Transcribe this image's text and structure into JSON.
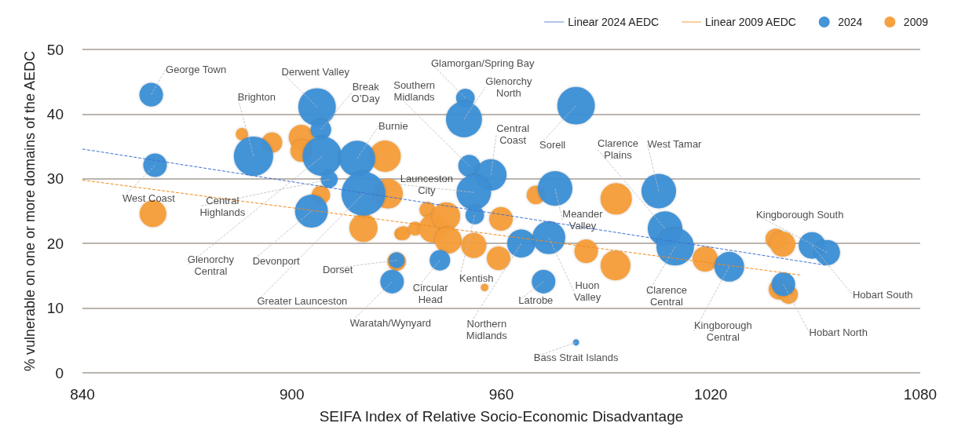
{
  "chart_data": {
    "type": "bubble",
    "xlabel": "SEIFA Index of Relative Socio-Economic Disadvantage",
    "ylabel": "% vulnerable on one or more domains of the AEDC",
    "xlim": [
      840,
      1080
    ],
    "xticks": [
      840,
      900,
      960,
      1020,
      1080
    ],
    "ylim": [
      0,
      50
    ],
    "yticks": [
      0,
      10,
      20,
      30,
      40,
      50
    ],
    "grid": "y",
    "legend": "top right",
    "series": [
      {
        "name": "Linear 2024 AEDC",
        "type": "line",
        "color": "#3f6fcf",
        "x": [
          840,
          1053.4
        ],
        "values": [
          34.6,
          16.6
        ],
        "line_style": "dashed",
        "marker": "none"
      },
      {
        "name": "Linear 2009 AEDC",
        "type": "line",
        "color": "#f08a1c",
        "x": [
          840,
          1046.1
        ],
        "values": [
          29.8,
          15.1
        ],
        "line_style": "dashed",
        "marker": "none"
      },
      {
        "name": "2024",
        "color": "#3d8fd6",
        "x": [
          859.7,
          860.8,
          889.0,
          907.2,
          908.3,
          908.7,
          918.7,
          910.7,
          920.5,
          905.6,
          930.0,
          928.7,
          949.7,
          949.3,
          950.8,
          957.0,
          952.1,
          952.4,
          942.4,
          965.7,
          972.1,
          973.6,
          975.4,
          981.4,
          981.4,
          1005.1,
          1006.9,
          1009.8,
          1025.3,
          1040.8,
          1049.0,
          1053.4
        ],
        "values": [
          43.0,
          32.1,
          33.5,
          41.1,
          37.6,
          33.5,
          33.1,
          29.9,
          27.7,
          25.0,
          17.4,
          14.1,
          42.5,
          39.2,
          32.0,
          30.6,
          27.9,
          24.4,
          17.4,
          20.0,
          14.1,
          20.9,
          28.5,
          41.3,
          4.7,
          28.1,
          22.3,
          19.5,
          16.4,
          13.7,
          19.7,
          18.6
        ],
        "sizes": [
          0.29,
          0.29,
          0.8,
          0.73,
          0.22,
          0.8,
          0.67,
          0.15,
          1,
          0.56,
          0.13,
          0.29,
          0.18,
          0.67,
          0.25,
          0.51,
          0.62,
          0.18,
          0.22,
          0.41,
          0.29,
          0.56,
          0.62,
          0.73,
          0.02,
          0.62,
          0.62,
          0.73,
          0.46,
          0.29,
          0.37,
          0.33
        ]
      },
      {
        "name": "2009",
        "color": "#f59d38",
        "x": [
          860.2,
          885.7,
          894.3,
          902.7,
          902.7,
          908.3,
          926.7,
          927.5,
          920.5,
          931.1,
          930.0,
          932.0,
          935.3,
          938.8,
          940.4,
          944.2,
          944.8,
          952.1,
          959.9,
          959.2,
          955.2,
          969.9,
          984.3,
          992.9,
          992.7,
          1018.4,
          1038.6,
          1040.6,
          1039.5,
          1042.3
        ],
        "values": [
          24.6,
          36.9,
          35.6,
          36.4,
          34.3,
          27.5,
          33.5,
          27.7,
          22.4,
          21.5,
          17.2,
          21.6,
          22.3,
          25.2,
          22.3,
          24.2,
          20.5,
          19.7,
          23.8,
          17.7,
          13.2,
          27.5,
          18.8,
          26.9,
          16.6,
          17.6,
          20.7,
          19.9,
          12.9,
          12.1
        ],
        "sizes": [
          0.37,
          0.08,
          0.22,
          0.33,
          0.25,
          0.18,
          0.51,
          0.46,
          0.41,
          0.08,
          0.18,
          0.1,
          0.1,
          0.13,
          0.41,
          0.41,
          0.37,
          0.33,
          0.29,
          0.29,
          0.03,
          0.18,
          0.29,
          0.51,
          0.46,
          0.33,
          0.22,
          0.33,
          0.22,
          0.18
        ]
      }
    ],
    "annotations": [
      {
        "text": "George Town",
        "x": 859.7,
        "y": 43.0
      },
      {
        "text": "West Coast",
        "x": 860.8,
        "y": 32.1
      },
      {
        "text": "Brighton",
        "x": 889.0,
        "y": 33.5
      },
      {
        "text": "Derwent Valley",
        "x": 907.2,
        "y": 41.1
      },
      {
        "text": "Break O’Day",
        "x": 908.3,
        "y": 37.6
      },
      {
        "text": "Central Highlands",
        "x": 910.7,
        "y": 29.9
      },
      {
        "text": "Glenorchy Central",
        "x": 908.7,
        "y": 33.5
      },
      {
        "text": "Devonport",
        "x": 905.6,
        "y": 25.0
      },
      {
        "text": "Burnie",
        "x": 918.7,
        "y": 33.1
      },
      {
        "text": "Greater Launceston",
        "x": 920.5,
        "y": 27.7
      },
      {
        "text": "Dorset",
        "x": 930.0,
        "y": 17.4
      },
      {
        "text": "Waratah/Wynyard",
        "x": 928.7,
        "y": 14.1
      },
      {
        "text": "Southern Midlands",
        "x": 950.8,
        "y": 32.0
      },
      {
        "text": "Glamorgan/Spring Bay",
        "x": 949.7,
        "y": 42.5
      },
      {
        "text": "Glenorchy North",
        "x": 949.3,
        "y": 39.2
      },
      {
        "text": "Launceston City",
        "x": 952.1,
        "y": 27.9
      },
      {
        "text": "Central Coast",
        "x": 957.0,
        "y": 30.6
      },
      {
        "text": "Circular Head",
        "x": 942.4,
        "y": 17.4
      },
      {
        "text": "Kentish",
        "x": 952.4,
        "y": 24.4
      },
      {
        "text": "Northern Midlands",
        "x": 965.7,
        "y": 20.0
      },
      {
        "text": "Latrobe",
        "x": 972.1,
        "y": 14.1
      },
      {
        "text": "Sorell",
        "x": 981.4,
        "y": 41.3
      },
      {
        "text": "Huon Valley",
        "x": 973.6,
        "y": 20.9
      },
      {
        "text": "Meander Valley",
        "x": 975.4,
        "y": 28.5
      },
      {
        "text": "Bass Strait Islands",
        "x": 981.4,
        "y": 4.7
      },
      {
        "text": "Clarence Plains",
        "x": 1006.9,
        "y": 22.3
      },
      {
        "text": "West Tamar",
        "x": 1005.1,
        "y": 28.1
      },
      {
        "text": "Clarence Central",
        "x": 1009.8,
        "y": 19.5
      },
      {
        "text": "Kingborough Central",
        "x": 1025.3,
        "y": 16.4
      },
      {
        "text": "Kingborough South",
        "x": 1053.4,
        "y": 18.6
      },
      {
        "text": "Hobart South",
        "x": 1049.0,
        "y": 19.7
      },
      {
        "text": "Hobart North",
        "x": 1040.8,
        "y": 13.7
      }
    ]
  }
}
